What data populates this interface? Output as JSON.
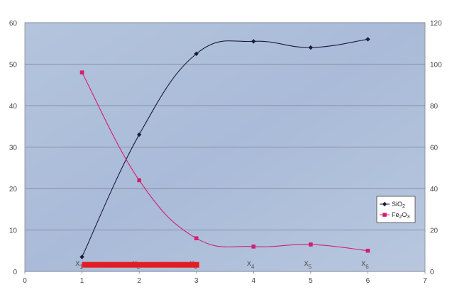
{
  "chart_data": {
    "type": "line",
    "title": "",
    "xlabel": "",
    "x_ticks": [
      "0",
      "1",
      "2",
      "3",
      "4",
      "5",
      "6",
      "7"
    ],
    "xlim": [
      0,
      7
    ],
    "categories": [
      {
        "base": "x",
        "sub": "1",
        "x": 1
      },
      {
        "base": "x",
        "sub": "2",
        "x": 2
      },
      {
        "base": "x",
        "sub": "3",
        "x": 3
      },
      {
        "base": "x",
        "sub": "4",
        "x": 4
      },
      {
        "base": "x",
        "sub": "5",
        "x": 5
      },
      {
        "base": "x",
        "sub": "6",
        "x": 6
      }
    ],
    "y_left": {
      "ticks": [
        "0",
        "10",
        "20",
        "30",
        "40",
        "50",
        "60"
      ],
      "lim": [
        0,
        60
      ]
    },
    "y_right": {
      "ticks": [
        "0",
        "20",
        "40",
        "60",
        "80",
        "100",
        "120"
      ],
      "lim": [
        0,
        120
      ]
    },
    "grid": "horizontal",
    "legend_position": "right",
    "series": [
      {
        "label_parts": [
          {
            "t": "SiO"
          },
          {
            "t": "2",
            "sub": true
          }
        ],
        "axis": "right",
        "color": "#1a1a3a",
        "marker": "diamond",
        "x": [
          1,
          2,
          3,
          4,
          5,
          6
        ],
        "values": [
          7,
          66,
          105,
          111,
          108,
          112
        ]
      },
      {
        "label_parts": [
          {
            "t": "Fe"
          },
          {
            "t": "2",
            "sub": true
          },
          {
            "t": "O"
          },
          {
            "t": "3",
            "sub": true
          }
        ],
        "axis": "left",
        "color": "#d02070",
        "marker": "square",
        "x": [
          1,
          2,
          3,
          4,
          5,
          6
        ],
        "values": [
          48,
          22,
          8,
          6,
          6.5,
          5
        ]
      }
    ],
    "highlight_bar": {
      "color": "#e31c23",
      "x_range": [
        1,
        3.05
      ],
      "y": 1.6
    }
  }
}
